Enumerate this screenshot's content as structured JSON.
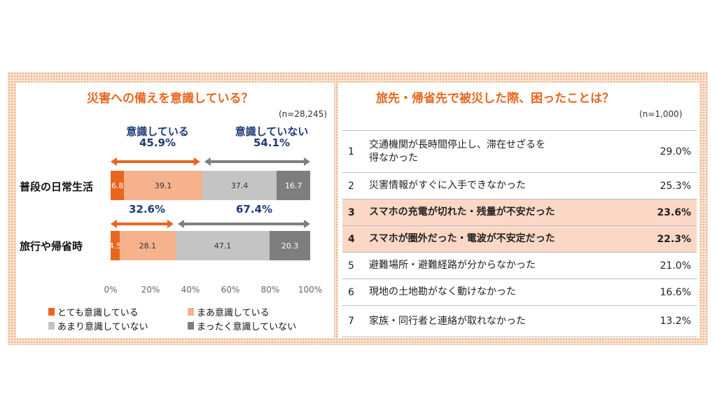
{
  "left": {
    "title": "災害への備えを意識している？",
    "n_label": "(n=28,245)"
  },
  "right": {
    "title": "旅先・帰省先で被災した際、困ったことは？",
    "n_label": "(n=1,000)",
    "rows": [
      {
        "rank": "1",
        "text_lines": [
          "交通機関が長時間停止し、滞在せざるを",
          "得なかった"
        ],
        "value": "29.0%",
        "highlight": false
      },
      {
        "rank": "2",
        "text_lines": [
          "災害情報がすぐに入手できなかった"
        ],
        "value": "25.3%",
        "highlight": false
      },
      {
        "rank": "3",
        "text_lines": [
          "スマホの充電が切れた・残量が不安だった"
        ],
        "value": "23.6%",
        "highlight": true
      },
      {
        "rank": "4",
        "text_lines": [
          "スマホが圏外だった・電波が不安定だった"
        ],
        "value": "22.3%",
        "highlight": true
      },
      {
        "rank": "5",
        "text_lines": [
          "避難場所・避難経路が分からなかった"
        ],
        "value": "21.0%",
        "highlight": false
      },
      {
        "rank": "6",
        "text_lines": [
          "現地の土地勘がなく動けなかった"
        ],
        "value": "16.6%",
        "highlight": false
      },
      {
        "rank": "7",
        "text_lines": [
          "家族・同行者と連絡が取れなかった"
        ],
        "value": "13.2%",
        "highlight": false
      }
    ]
  },
  "chart_data": {
    "type": "bar",
    "orientation": "horizontal",
    "stacked": true,
    "categories": [
      "普段の日常生活",
      "旅行や帰省時"
    ],
    "series": [
      {
        "name": "とても意識している",
        "values": [
          6.8,
          4.5
        ],
        "color": "#e8661e",
        "label_color": "#ffffff"
      },
      {
        "name": "まあ意識している",
        "values": [
          39.1,
          28.1
        ],
        "color": "#f6b18d",
        "label_color": "#333333"
      },
      {
        "name": "あまり意識していない",
        "values": [
          37.4,
          47.1
        ],
        "color": "#c4c4c4",
        "label_color": "#333333"
      },
      {
        "name": "まったく意識していない",
        "values": [
          16.7,
          20.3
        ],
        "color": "#7e7e7e",
        "label_color": "#ffffff"
      }
    ],
    "xlim": [
      0,
      100
    ],
    "xticks": [
      "0%",
      "20%",
      "40%",
      "60%",
      "80%",
      "100%"
    ],
    "legend_position": "bottom",
    "summary_headers": {
      "aware": "意識している",
      "unaware": "意識していない"
    },
    "summaries": [
      {
        "aware": "45.9%",
        "unaware": "54.1%"
      },
      {
        "aware": "32.6%",
        "unaware": "67.4%"
      }
    ],
    "accent_colors": {
      "aware": "#e8661e",
      "unaware": "#808080"
    }
  }
}
